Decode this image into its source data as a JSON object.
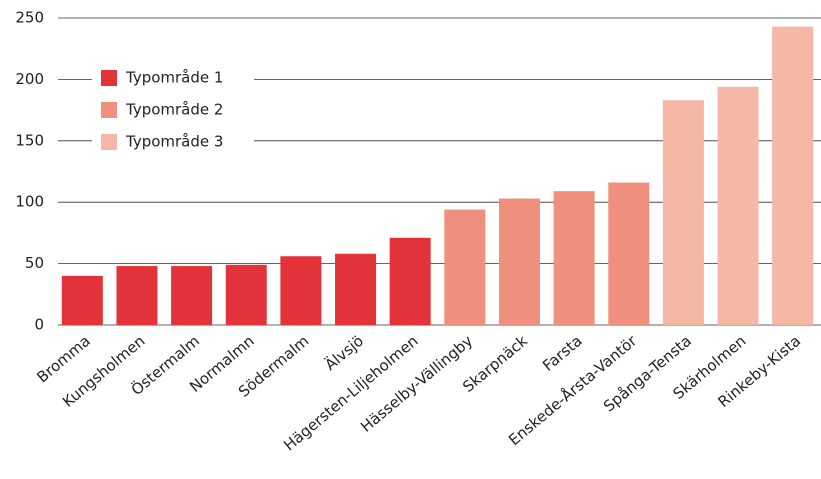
{
  "chart_data": {
    "type": "bar",
    "categories": [
      "Bromma",
      "Kungsholmen",
      "Östermalm",
      "Normalmn",
      "Södermalm",
      "Älvsjö",
      "Hägersten-Liljeholmen",
      "Hässelby-Vällingby",
      "Skarpnäck",
      "Farsta",
      "Enskede-Årsta-Vantör",
      "Spånga-Tensta",
      "Skärholmen",
      "Rinkeby-Kista"
    ],
    "series": [
      {
        "name": "Typområde 1",
        "color": "#e3333a",
        "values": [
          40,
          48,
          48,
          49,
          56,
          58,
          71,
          null,
          null,
          null,
          null,
          null,
          null,
          null
        ]
      },
      {
        "name": "Typområde 2",
        "color": "#ef8f7d",
        "values": [
          null,
          null,
          null,
          null,
          null,
          null,
          null,
          94,
          103,
          109,
          116,
          null,
          null,
          null
        ]
      },
      {
        "name": "Typområde 3",
        "color": "#f5b8a6",
        "values": [
          null,
          null,
          null,
          null,
          null,
          null,
          null,
          null,
          null,
          null,
          null,
          183,
          194,
          243
        ]
      }
    ],
    "ylim": [
      0,
      250
    ],
    "yticks": [
      0,
      50,
      100,
      150,
      200,
      250
    ],
    "grid": true,
    "legend": "top-left"
  }
}
